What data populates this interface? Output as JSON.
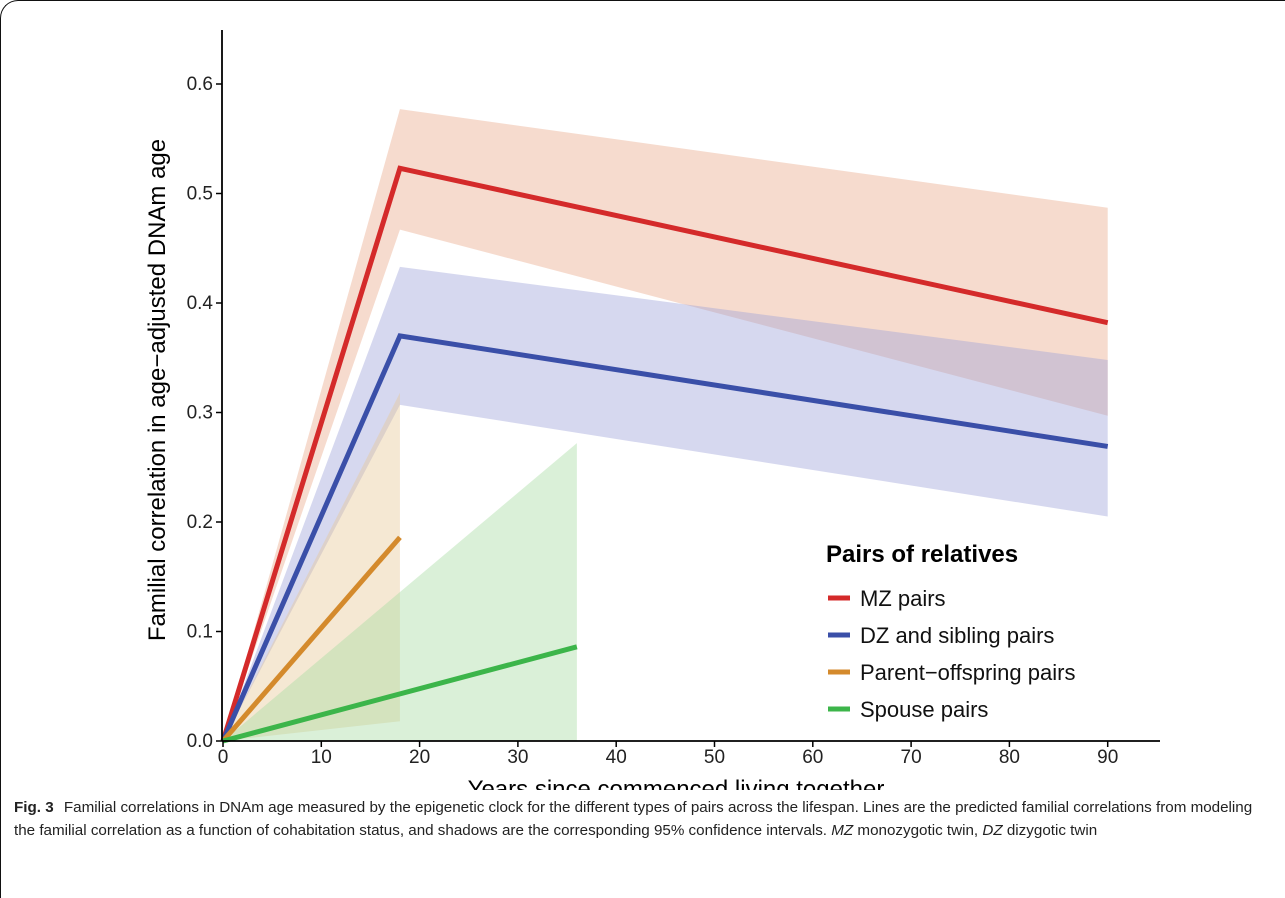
{
  "chart_data": {
    "type": "line",
    "title": "",
    "xlabel": "Years since commenced living together",
    "ylabel": "Familial correlation in age−adjusted DNAm age",
    "xlim": [
      0,
      93
    ],
    "ylim": [
      0,
      0.64
    ],
    "xticks": [
      "0",
      "10",
      "20",
      "30",
      "40",
      "50",
      "60",
      "70",
      "80",
      "90"
    ],
    "yticks": [
      "0.0",
      "0.1",
      "0.2",
      "0.3",
      "0.4",
      "0.5",
      "0.6"
    ],
    "grid": false,
    "legend_title": "Pairs of relatives",
    "legend_position": "right",
    "series": [
      {
        "name": "MZ pairs",
        "color": "#d42a2a",
        "band_color": "#e9a98a",
        "x": [
          0,
          18,
          90
        ],
        "y": [
          0.0,
          0.523,
          0.382
        ],
        "lower": [
          0.0,
          0.467,
          0.297
        ],
        "upper": [
          0.0,
          0.577,
          0.487
        ]
      },
      {
        "name": "DZ and sibling pairs",
        "color": "#3a4fa8",
        "band_color": "#9da1d8",
        "x": [
          0,
          18,
          90
        ],
        "y": [
          0.0,
          0.37,
          0.269
        ],
        "lower": [
          0.0,
          0.307,
          0.205
        ],
        "upper": [
          0.0,
          0.433,
          0.348
        ]
      },
      {
        "name": "Parent−offspring pairs",
        "color": "#d48a2c",
        "band_color": "#e6c797",
        "x": [
          0,
          18
        ],
        "y": [
          0.0,
          0.186
        ],
        "lower": [
          0.0,
          0.018
        ],
        "upper": [
          0.0,
          0.318
        ]
      },
      {
        "name": "Spouse pairs",
        "color": "#3cb54a",
        "band_color": "#a8dca3",
        "x": [
          0,
          36
        ],
        "y": [
          0.0,
          0.086
        ],
        "lower": [
          0.0,
          0.0
        ],
        "upper": [
          0.0,
          0.272
        ]
      }
    ]
  },
  "caption": {
    "label": "Fig. 3",
    "text1": "Familial correlations in DNAm age measured by the epigenetic clock for the different types of pairs across the lifespan. Lines are the predicted familial correlations from modeling the familial correlation as a function of cohabitation status, and shadows are the corresponding 95% confidence intervals.",
    "abbr1": "MZ",
    "def1": "monozygotic twin,",
    "abbr2": "DZ",
    "def2": "dizygotic twin"
  }
}
